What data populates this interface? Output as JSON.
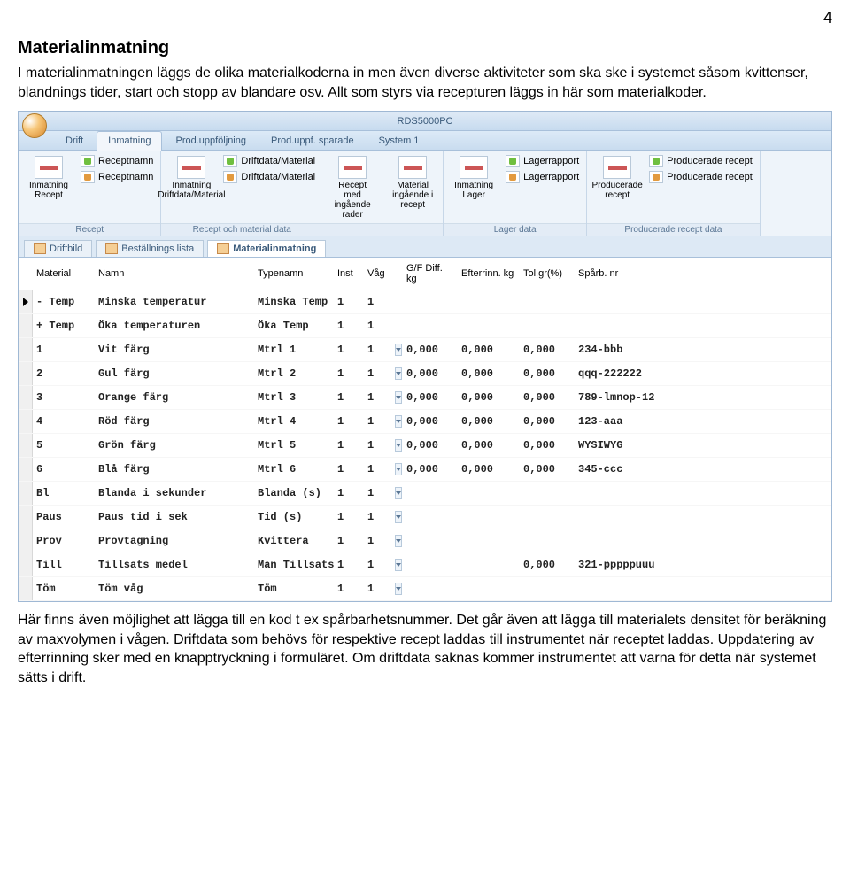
{
  "page_number": "4",
  "heading": "Materialinmatning",
  "para1": "I materialinmatningen läggs de olika materialkoderna in men även diverse aktiviteter som ska ske i systemet såsom kvittenser, blandnings tider, start och stopp av blandare osv. Allt som styrs via recepturen läggs in här som materialkoder.",
  "para2": "Här finns även möjlighet att lägga till en kod t ex spårbarhetsnummer. Det går även att lägga till materialets densitet för beräkning av maxvolymen i vågen. Driftdata som behövs för respektive recept laddas till instrumentet när receptet laddas. Uppdatering av efterrinning sker med en knapptryckning i formuläret. Om driftdata saknas kommer instrumentet att varna för detta när systemet sätts i drift.",
  "app": {
    "title": "RDS5000PC",
    "maintabs": [
      "Drift",
      "Inmatning",
      "Prod.uppföljning",
      "Prod.uppf. sparade",
      "System 1"
    ],
    "maintab_active": 1,
    "ribbon": [
      {
        "label": "Recept",
        "big": {
          "label": "Inmatning Recept"
        },
        "small": [
          {
            "label": "Receptnamn",
            "color": "green"
          },
          {
            "label": "Receptnamn",
            "color": "orange"
          }
        ]
      },
      {
        "label": "Recept och material data",
        "big": {
          "label": "Inmatning Driftdata/Material"
        },
        "small": [
          {
            "label": "Driftdata/Material",
            "color": "green"
          },
          {
            "label": "Driftdata/Material",
            "color": "orange"
          }
        ]
      },
      {
        "label": "",
        "big": {
          "label": "Recept med ingående rader"
        }
      },
      {
        "label": "",
        "big": {
          "label": "Material ingående i recept"
        }
      },
      {
        "label": "Lager data",
        "big": {
          "label": "Inmatning Lager"
        },
        "small": [
          {
            "label": "Lagerrapport",
            "color": "green"
          },
          {
            "label": "Lagerrapport",
            "color": "orange"
          }
        ]
      },
      {
        "label": "Producerade recept data",
        "big": {
          "label": "Producerade recept"
        },
        "small": [
          {
            "label": "Producerade recept",
            "color": "green"
          },
          {
            "label": "Producerade recept",
            "color": "orange"
          }
        ]
      }
    ],
    "subtabs": [
      "Driftbild",
      "Beställnings lista",
      "Materialinmatning"
    ],
    "subtab_active": 2,
    "columns": [
      "Material",
      "Namn",
      "Typenamn",
      "Inst",
      "Våg",
      "",
      "G/F Diff. kg",
      "Efterrinn. kg",
      "Tol.gr(%)",
      "Spårb. nr"
    ],
    "rows": [
      {
        "material": "- Temp",
        "namn": "Minska temperatur",
        "typenamn": "Minska Temp",
        "inst": "1",
        "vag": "1",
        "dd": false,
        "gf": "",
        "eft": "",
        "tol": "",
        "spar": ""
      },
      {
        "material": "+ Temp",
        "namn": "Öka temperaturen",
        "typenamn": "Öka Temp",
        "inst": "1",
        "vag": "1",
        "dd": false,
        "gf": "",
        "eft": "",
        "tol": "",
        "spar": ""
      },
      {
        "material": "1",
        "namn": "Vit färg",
        "typenamn": "Mtrl   1",
        "inst": "1",
        "vag": "1",
        "dd": true,
        "gf": "0,000",
        "eft": "0,000",
        "tol": "0,000",
        "spar": "234-bbb"
      },
      {
        "material": "2",
        "namn": "Gul färg",
        "typenamn": "Mtrl   2",
        "inst": "1",
        "vag": "1",
        "dd": true,
        "gf": "0,000",
        "eft": "0,000",
        "tol": "0,000",
        "spar": "qqq-222222"
      },
      {
        "material": "3",
        "namn": "Orange färg",
        "typenamn": "Mtrl   3",
        "inst": "1",
        "vag": "1",
        "dd": true,
        "gf": "0,000",
        "eft": "0,000",
        "tol": "0,000",
        "spar": "789-lmnop-12"
      },
      {
        "material": "4",
        "namn": "Röd färg",
        "typenamn": "Mtrl   4",
        "inst": "1",
        "vag": "1",
        "dd": true,
        "gf": "0,000",
        "eft": "0,000",
        "tol": "0,000",
        "spar": "123-aaa"
      },
      {
        "material": "5",
        "namn": "Grön färg",
        "typenamn": "Mtrl   5",
        "inst": "1",
        "vag": "1",
        "dd": true,
        "gf": "0,000",
        "eft": "0,000",
        "tol": "0,000",
        "spar": "WYSIWYG"
      },
      {
        "material": "6",
        "namn": "Blå färg",
        "typenamn": "Mtrl   6",
        "inst": "1",
        "vag": "1",
        "dd": true,
        "gf": "0,000",
        "eft": "0,000",
        "tol": "0,000",
        "spar": "345-ccc"
      },
      {
        "material": "Bl",
        "namn": "Blanda i sekunder",
        "typenamn": "Blanda (s)",
        "inst": "1",
        "vag": "1",
        "dd": true,
        "gf": "",
        "eft": "",
        "tol": "",
        "spar": ""
      },
      {
        "material": "Paus",
        "namn": "Paus tid i sek",
        "typenamn": "Tid (s)",
        "inst": "1",
        "vag": "1",
        "dd": true,
        "gf": "",
        "eft": "",
        "tol": "",
        "spar": ""
      },
      {
        "material": "Prov",
        "namn": "Provtagning",
        "typenamn": "Kvittera",
        "inst": "1",
        "vag": "1",
        "dd": true,
        "gf": "",
        "eft": "",
        "tol": "",
        "spar": ""
      },
      {
        "material": "Till",
        "namn": "Tillsats medel",
        "typenamn": "Man Tillsats",
        "inst": "1",
        "vag": "1",
        "dd": true,
        "gf": "",
        "eft": "",
        "tol": "0,000",
        "spar": "321-pppppuuu"
      },
      {
        "material": "Töm",
        "namn": "Töm våg",
        "typenamn": "Töm",
        "inst": "1",
        "vag": "1",
        "dd": true,
        "gf": "",
        "eft": "",
        "tol": "",
        "spar": ""
      }
    ]
  }
}
